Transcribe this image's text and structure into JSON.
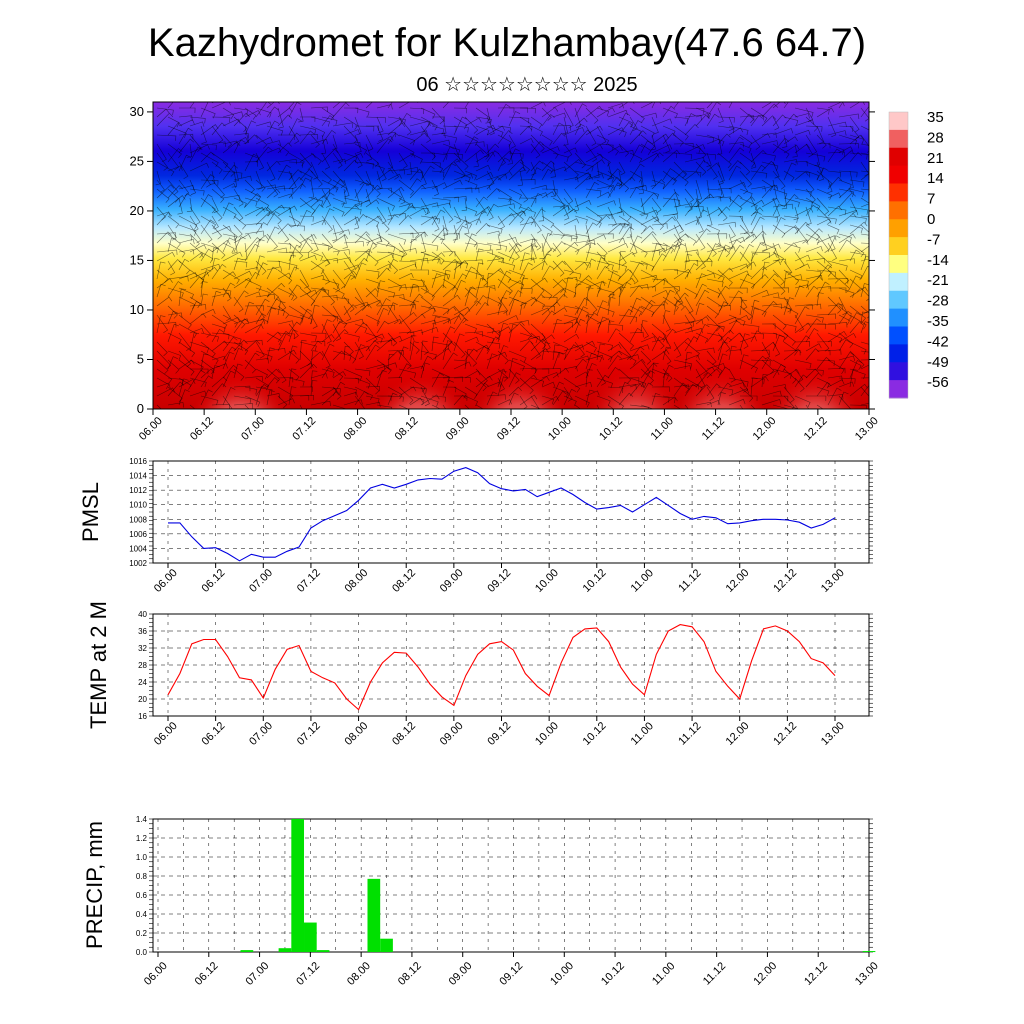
{
  "header": {
    "title": "Kazhydromet for Kulzhambay(47.6 64.7)",
    "subtitle": "06 ☆☆☆☆☆☆☆☆ 2025"
  },
  "x_ticks": [
    "06.00",
    "06.12",
    "07.00",
    "07.12",
    "08.00",
    "08.12",
    "09.00",
    "09.12",
    "10.00",
    "10.12",
    "11.00",
    "11.12",
    "12.00",
    "12.12",
    "13.00"
  ],
  "chart_data": [
    {
      "type": "heatmap",
      "panel": "cross-section",
      "title": "",
      "x_ticks": [
        "06.00",
        "06.12",
        "07.00",
        "07.12",
        "08.00",
        "08.12",
        "09.00",
        "09.12",
        "10.00",
        "10.12",
        "11.00",
        "11.12",
        "12.00",
        "12.12",
        "13.00"
      ],
      "y_ticks": [
        0,
        5,
        10,
        15,
        20,
        25,
        30
      ],
      "ylim": [
        0,
        31
      ],
      "colorbar_labels": [
        "35",
        "28",
        "21",
        "14",
        "7",
        "0",
        "-7",
        "-14",
        "-21",
        "-28",
        "-35",
        "-42",
        "-49",
        "-56"
      ],
      "overlay": "wind barbs"
    },
    {
      "type": "line",
      "ylabel": "PMSL",
      "ylim": [
        1002,
        1016
      ],
      "y_ticks": [
        1002,
        1004,
        1006,
        1008,
        1010,
        1012,
        1014,
        1016
      ],
      "color": "#0000e0",
      "x": [
        0,
        3,
        6,
        9,
        12,
        15,
        18,
        21,
        24,
        27,
        30,
        33,
        36,
        39,
        42,
        45,
        48,
        51,
        54,
        57,
        60,
        63,
        66,
        69,
        72,
        75,
        78,
        81,
        84,
        87,
        90,
        93,
        96,
        99,
        102,
        105,
        108,
        111,
        114,
        117,
        120,
        123,
        126,
        129,
        132,
        135,
        138,
        141,
        144,
        147,
        150,
        153,
        156,
        159,
        162,
        165,
        168
      ],
      "values": [
        1007.5,
        1007.5,
        1005.6,
        1004.0,
        1004.1,
        1003.3,
        1002.3,
        1003.2,
        1002.8,
        1002.8,
        1003.6,
        1004.2,
        1006.8,
        1007.8,
        1008.5,
        1009.2,
        1010.6,
        1012.3,
        1012.8,
        1012.3,
        1012.8,
        1013.4,
        1013.6,
        1013.5,
        1014.6,
        1015.1,
        1014.4,
        1012.9,
        1012.2,
        1011.9,
        1012.1,
        1011.1,
        1011.7,
        1012.3,
        1011.4,
        1010.3,
        1009.4,
        1009.6,
        1009.9,
        1009.0,
        1010.0,
        1011.0,
        1009.9,
        1008.8,
        1008.0,
        1008.4,
        1008.2,
        1007.4,
        1007.5,
        1007.8,
        1008.0,
        1008.0,
        1007.9,
        1007.6,
        1006.8,
        1007.3,
        1008.2
      ]
    },
    {
      "type": "line",
      "ylabel": "TEMP at 2 M",
      "ylim": [
        16,
        40
      ],
      "y_ticks": [
        16,
        20,
        24,
        28,
        32,
        36,
        40
      ],
      "color": "#ff0000",
      "x": [
        0,
        3,
        6,
        9,
        12,
        15,
        18,
        21,
        24,
        27,
        30,
        33,
        36,
        39,
        42,
        45,
        48,
        51,
        54,
        57,
        60,
        63,
        66,
        69,
        72,
        75,
        78,
        81,
        84,
        87,
        90,
        93,
        96,
        99,
        102,
        105,
        108,
        111,
        114,
        117,
        120,
        123,
        126,
        129,
        132,
        135,
        138,
        141,
        144,
        147,
        150,
        153,
        156,
        159,
        162,
        165,
        168
      ],
      "values": [
        21.0,
        26.0,
        33.0,
        34.0,
        34.0,
        30.0,
        25.0,
        24.5,
        20.2,
        27.0,
        31.7,
        32.6,
        26.5,
        25.0,
        23.8,
        20.0,
        17.5,
        24.0,
        28.5,
        31.0,
        30.8,
        27.5,
        23.5,
        20.5,
        18.5,
        25.5,
        30.5,
        33.0,
        33.5,
        31.5,
        26.0,
        23.0,
        20.8,
        28.5,
        34.5,
        36.5,
        36.7,
        33.5,
        27.5,
        23.5,
        21.0,
        30.5,
        36.0,
        37.5,
        37.0,
        33.5,
        26.5,
        23.0,
        20.0,
        29.0,
        36.5,
        37.2,
        36.0,
        33.5,
        29.5,
        28.5,
        25.5
      ]
    },
    {
      "type": "bar",
      "ylabel": "PRECIP, mm",
      "ylim": [
        0,
        1.4
      ],
      "y_ticks": [
        "0.0",
        "0.2",
        "0.4",
        "0.6",
        "0.8",
        "1.0",
        "1.2",
        "1.4"
      ],
      "color": "#00e000",
      "x": [
        21,
        30,
        33,
        36,
        39,
        51,
        54,
        168
      ],
      "values": [
        0.02,
        0.04,
        1.4,
        0.31,
        0.02,
        0.77,
        0.14,
        0.01
      ]
    }
  ]
}
